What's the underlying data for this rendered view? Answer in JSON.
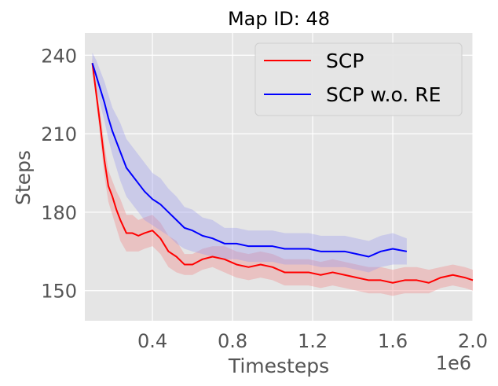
{
  "chart_data": {
    "type": "line",
    "title": "Map ID: 48",
    "xlabel": "Timesteps",
    "ylabel": "Steps",
    "x_offset_text": "1e6",
    "xlim": [
      0.0625,
      2.0
    ],
    "ylim": [
      138.5,
      248.5
    ],
    "xticks": [
      0.4,
      0.8,
      1.2,
      1.6,
      2.0
    ],
    "xtick_labels": [
      "0.4",
      "0.8",
      "1.2",
      "1.6",
      "2.0"
    ],
    "yticks": [
      150,
      180,
      210,
      240
    ],
    "ytick_labels": [
      "150",
      "180",
      "210",
      "240"
    ],
    "grid": true,
    "legend_position": "top-right",
    "series": [
      {
        "name": "SCP",
        "color": "#ff0000",
        "band_color": "#f08080",
        "x": [
          0.1,
          0.12,
          0.14,
          0.16,
          0.18,
          0.2,
          0.22,
          0.24,
          0.27,
          0.3,
          0.33,
          0.36,
          0.4,
          0.44,
          0.48,
          0.52,
          0.56,
          0.6,
          0.65,
          0.7,
          0.76,
          0.82,
          0.88,
          0.94,
          1.0,
          1.06,
          1.12,
          1.18,
          1.24,
          1.3,
          1.36,
          1.42,
          1.48,
          1.54,
          1.6,
          1.66,
          1.72,
          1.78,
          1.84,
          1.9,
          1.96,
          2.0
        ],
        "y": [
          237,
          225,
          213,
          200,
          190,
          186,
          181,
          177,
          172,
          172,
          171,
          172,
          173,
          170,
          165,
          163,
          160,
          160,
          162,
          163,
          162,
          160,
          159,
          160,
          159,
          157,
          157,
          157,
          156,
          157,
          156,
          155,
          154,
          154,
          153,
          154,
          154,
          153,
          155,
          156,
          155,
          154
        ],
        "lower": [
          235,
          222,
          208,
          194,
          184,
          179,
          174,
          169,
          165,
          165,
          165,
          166,
          167,
          164,
          159,
          157,
          156,
          156,
          158,
          159,
          157,
          155,
          154,
          155,
          154,
          152,
          152,
          152,
          151,
          152,
          151,
          150,
          149,
          149,
          148,
          149,
          149,
          149,
          151,
          152,
          151,
          150
        ],
        "upper": [
          239,
          228,
          218,
          206,
          196,
          192,
          188,
          185,
          179,
          179,
          177,
          178,
          179,
          176,
          171,
          169,
          164,
          164,
          166,
          167,
          167,
          165,
          164,
          165,
          164,
          162,
          162,
          162,
          161,
          162,
          161,
          160,
          159,
          159,
          158,
          159,
          159,
          158,
          159,
          160,
          159,
          158
        ]
      },
      {
        "name": "SCP w.o. RE",
        "color": "#0000ff",
        "band_color": "#9999ee",
        "x": [
          0.1,
          0.12,
          0.14,
          0.16,
          0.18,
          0.2,
          0.22,
          0.24,
          0.27,
          0.3,
          0.33,
          0.36,
          0.4,
          0.44,
          0.48,
          0.52,
          0.56,
          0.6,
          0.65,
          0.7,
          0.76,
          0.82,
          0.88,
          0.94,
          1.0,
          1.06,
          1.12,
          1.18,
          1.24,
          1.3,
          1.36,
          1.42,
          1.48,
          1.54,
          1.6,
          1.67
        ],
        "y": [
          237,
          232,
          227,
          222,
          216,
          211,
          207,
          203,
          197,
          194,
          191,
          188,
          185,
          183,
          180,
          177,
          174,
          173,
          171,
          170,
          168,
          168,
          167,
          167,
          167,
          166,
          166,
          166,
          165,
          165,
          165,
          164,
          163,
          165,
          166,
          165
        ],
        "lower": [
          233,
          227,
          221,
          215,
          208,
          202,
          197,
          192,
          186,
          183,
          180,
          177,
          175,
          173,
          171,
          168,
          166,
          165,
          164,
          163,
          162,
          162,
          161,
          161,
          161,
          160,
          160,
          160,
          159,
          159,
          159,
          158,
          157,
          159,
          160,
          160
        ],
        "upper": [
          241,
          238,
          234,
          230,
          225,
          220,
          217,
          214,
          208,
          205,
          202,
          199,
          195,
          193,
          189,
          186,
          182,
          181,
          178,
          177,
          174,
          174,
          173,
          173,
          173,
          172,
          172,
          172,
          171,
          171,
          171,
          170,
          169,
          171,
          172,
          170
        ]
      }
    ]
  }
}
